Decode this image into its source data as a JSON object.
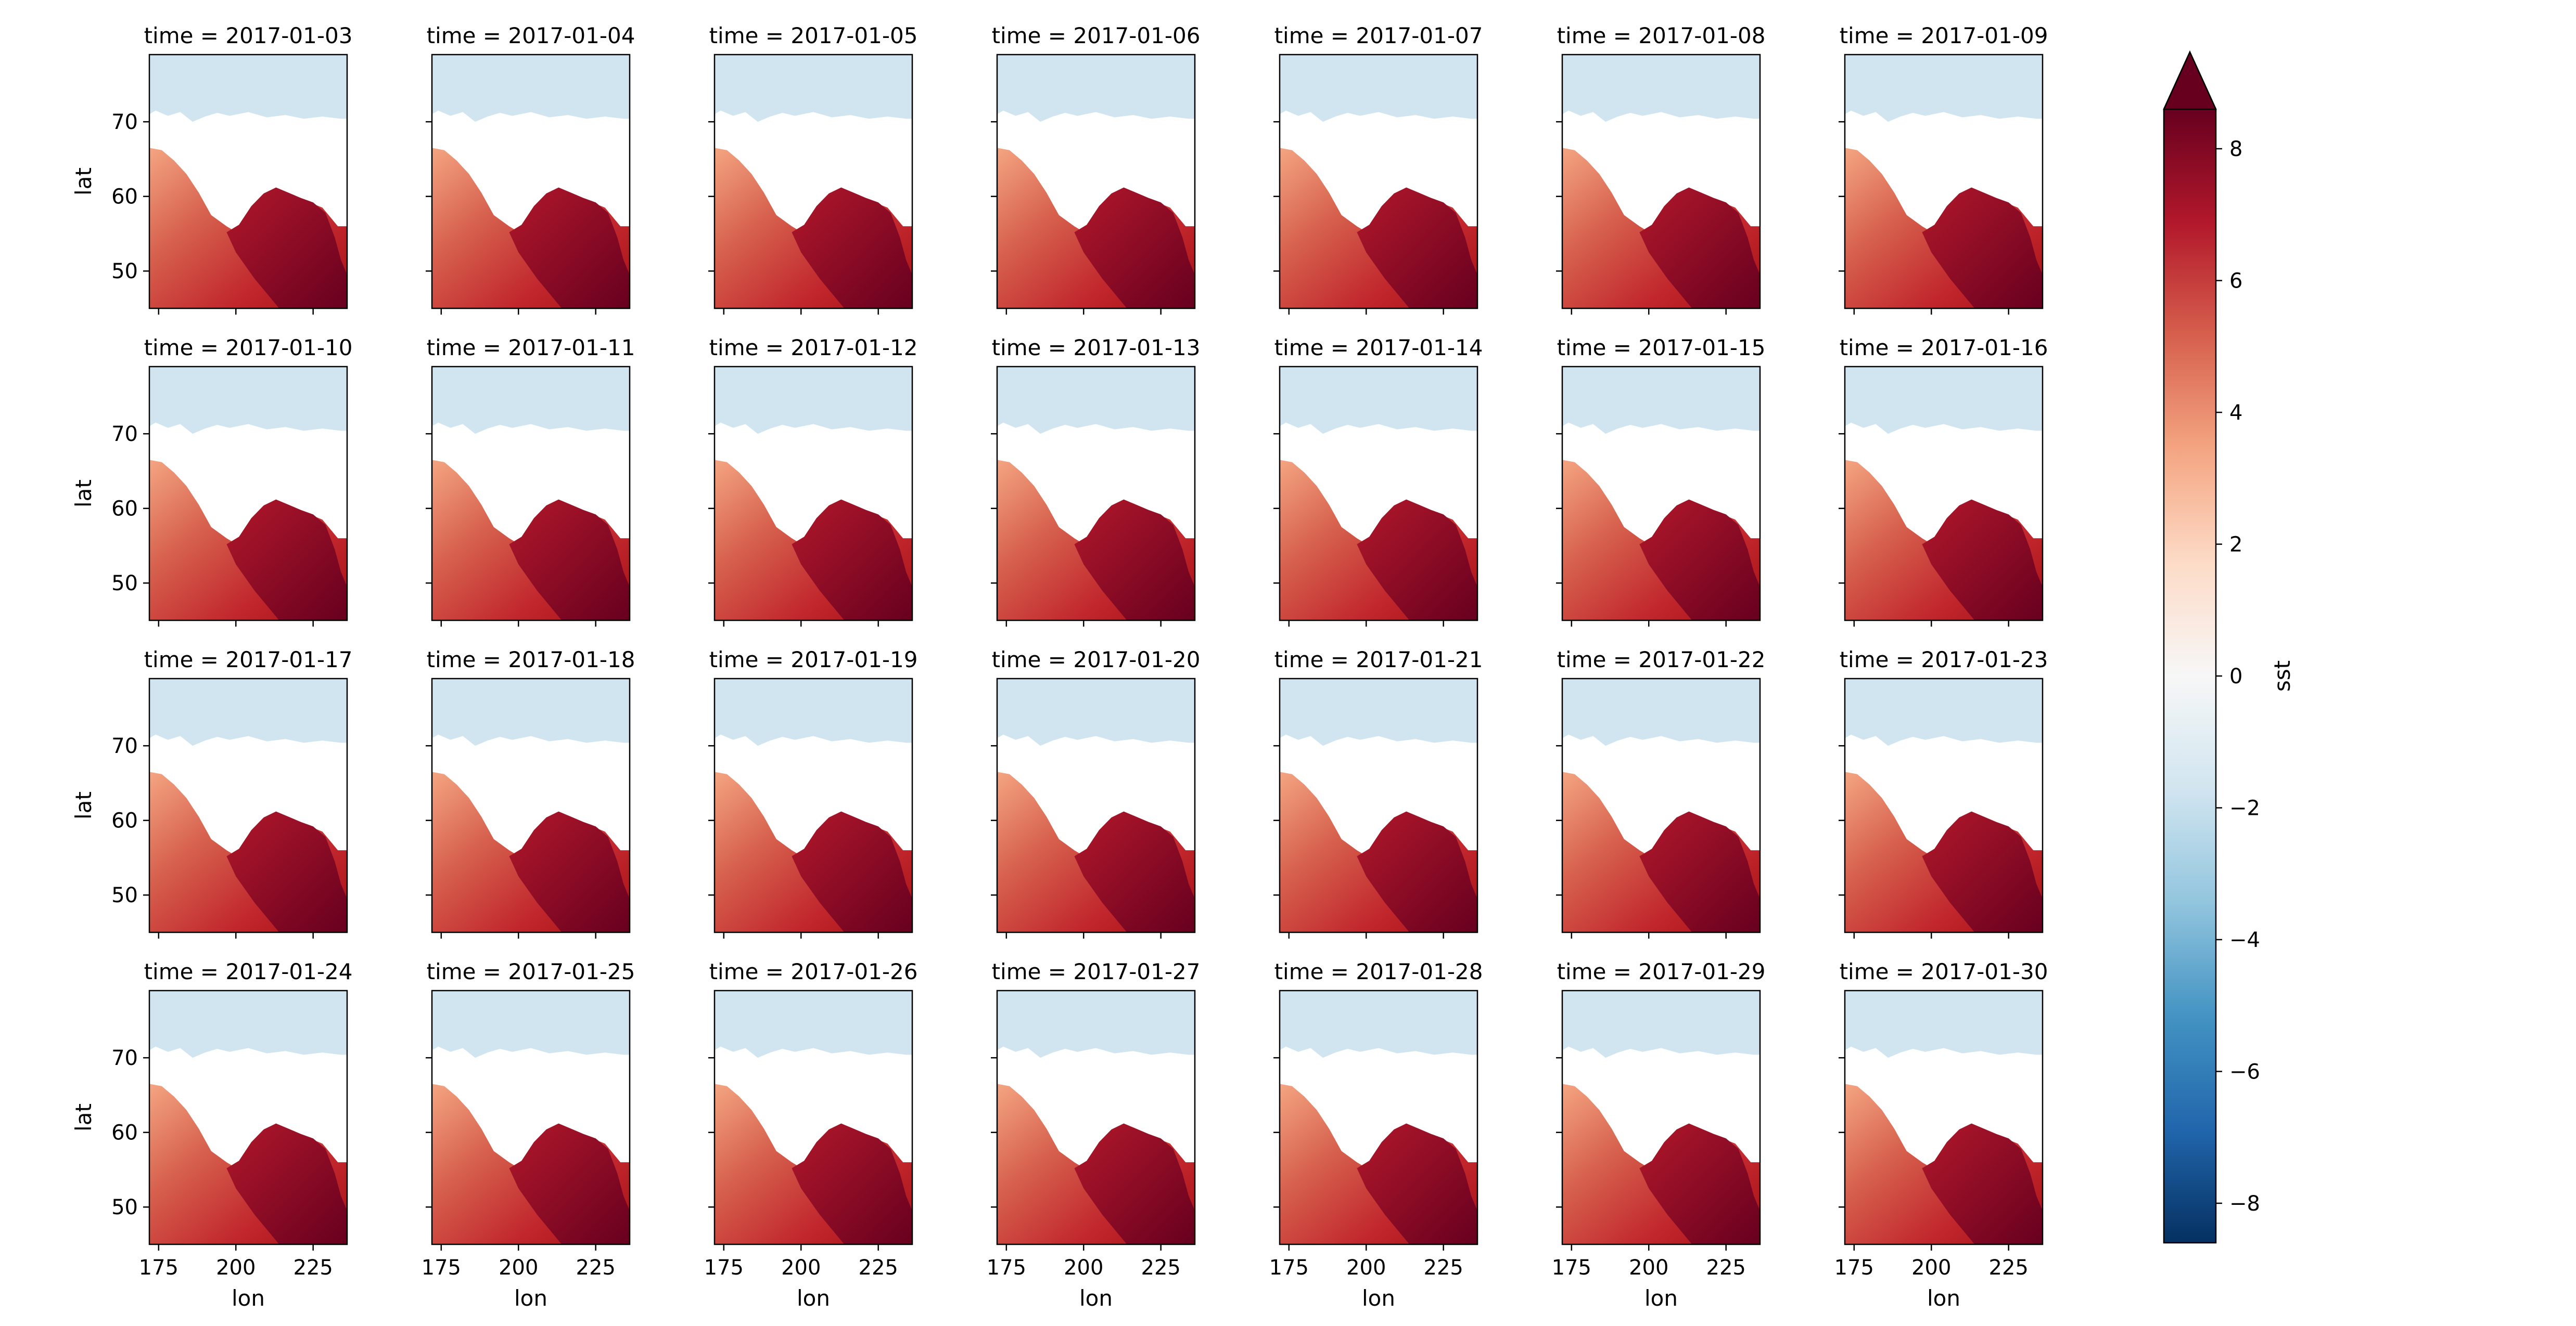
{
  "chart_data": {
    "type": "heatmap",
    "layout": "facet-grid",
    "rows": 4,
    "cols": 7,
    "panels": [
      {
        "title": "time = 2017-01-03"
      },
      {
        "title": "time = 2017-01-04"
      },
      {
        "title": "time = 2017-01-05"
      },
      {
        "title": "time = 2017-01-06"
      },
      {
        "title": "time = 2017-01-07"
      },
      {
        "title": "time = 2017-01-08"
      },
      {
        "title": "time = 2017-01-09"
      },
      {
        "title": "time = 2017-01-10"
      },
      {
        "title": "time = 2017-01-11"
      },
      {
        "title": "time = 2017-01-12"
      },
      {
        "title": "time = 2017-01-13"
      },
      {
        "title": "time = 2017-01-14"
      },
      {
        "title": "time = 2017-01-15"
      },
      {
        "title": "time = 2017-01-16"
      },
      {
        "title": "time = 2017-01-17"
      },
      {
        "title": "time = 2017-01-18"
      },
      {
        "title": "time = 2017-01-19"
      },
      {
        "title": "time = 2017-01-20"
      },
      {
        "title": "time = 2017-01-21"
      },
      {
        "title": "time = 2017-01-22"
      },
      {
        "title": "time = 2017-01-23"
      },
      {
        "title": "time = 2017-01-24"
      },
      {
        "title": "time = 2017-01-25"
      },
      {
        "title": "time = 2017-01-26"
      },
      {
        "title": "time = 2017-01-27"
      },
      {
        "title": "time = 2017-01-28"
      },
      {
        "title": "time = 2017-01-29"
      },
      {
        "title": "time = 2017-01-30"
      }
    ],
    "xlabel": "lon",
    "ylabel": "lat",
    "xlim": [
      172,
      236
    ],
    "ylim": [
      45,
      79
    ],
    "xticks": [
      175,
      200,
      225
    ],
    "xtick_labels": [
      "175",
      "200",
      "225"
    ],
    "yticks": [
      50,
      60,
      70
    ],
    "ytick_labels": [
      "50",
      "60",
      "70"
    ],
    "colorbar": {
      "label": "sst",
      "colormap": "RdBu_r",
      "vmin": -8.6,
      "vmax": 8.6,
      "extend": "max",
      "ticks": [
        -8,
        -6,
        -4,
        -2,
        0,
        2,
        4,
        6,
        8
      ],
      "tick_labels": [
        "−8",
        "−6",
        "−4",
        "−2",
        "0",
        "2",
        "4",
        "6",
        "8"
      ]
    },
    "grid": false,
    "colors": {
      "ice": "#d1e5f0",
      "land": "#ffffff",
      "warm": "#b2182b",
      "hot": "#67001f"
    }
  }
}
